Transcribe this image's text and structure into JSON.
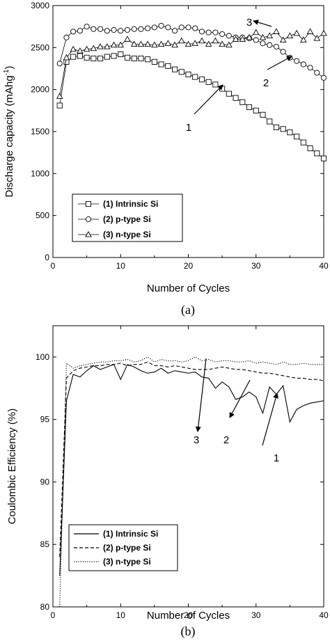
{
  "chart_data": [
    {
      "panel": "(a)",
      "type": "scatter",
      "xlabel": "Number of Cycles",
      "ylabel": "Discharge capacity (mAhg",
      "ylabel_sup": "-1",
      "ylabel_close": ")",
      "xlim": [
        0,
        40
      ],
      "ylim": [
        0,
        3000
      ],
      "xticks": [
        0,
        10,
        20,
        30,
        40
      ],
      "yticks": [
        0,
        500,
        1000,
        1500,
        2000,
        2500,
        3000
      ],
      "legend": {
        "placement": "bottom-left"
      },
      "series": [
        {
          "name": "(1) Intrinsic Si",
          "marker": "square",
          "x": [
            1,
            2,
            3,
            4,
            5,
            6,
            7,
            8,
            9,
            10,
            11,
            12,
            13,
            14,
            15,
            16,
            17,
            18,
            19,
            20,
            21,
            22,
            23,
            24,
            25,
            26,
            27,
            28,
            29,
            30,
            31,
            32,
            33,
            34,
            35,
            36,
            37,
            38,
            39,
            40
          ],
          "y": [
            1810,
            2330,
            2390,
            2400,
            2380,
            2370,
            2370,
            2390,
            2400,
            2420,
            2380,
            2370,
            2370,
            2360,
            2330,
            2300,
            2280,
            2240,
            2210,
            2180,
            2150,
            2120,
            2090,
            2060,
            2010,
            1950,
            1900,
            1850,
            1790,
            1750,
            1700,
            1620,
            1550,
            1530,
            1490,
            1440,
            1370,
            1300,
            1240,
            1180
          ]
        },
        {
          "name": "(2) p-type Si",
          "marker": "circle",
          "x": [
            1,
            2,
            3,
            4,
            5,
            6,
            7,
            8,
            9,
            10,
            11,
            12,
            13,
            14,
            15,
            16,
            17,
            18,
            19,
            20,
            21,
            22,
            23,
            24,
            25,
            26,
            27,
            28,
            29,
            30,
            31,
            32,
            33,
            34,
            35,
            36,
            37,
            38,
            39,
            40
          ],
          "y": [
            2310,
            2620,
            2690,
            2700,
            2750,
            2720,
            2720,
            2700,
            2710,
            2700,
            2710,
            2720,
            2720,
            2730,
            2740,
            2760,
            2740,
            2700,
            2740,
            2740,
            2730,
            2690,
            2680,
            2680,
            2660,
            2640,
            2620,
            2620,
            2610,
            2590,
            2550,
            2530,
            2510,
            2450,
            2380,
            2340,
            2300,
            2260,
            2200,
            2140
          ]
        },
        {
          "name": "(3) n-type Si",
          "marker": "triangle",
          "x": [
            1,
            2,
            3,
            4,
            5,
            6,
            7,
            8,
            9,
            10,
            11,
            12,
            13,
            14,
            15,
            16,
            17,
            18,
            19,
            20,
            21,
            22,
            23,
            24,
            25,
            26,
            27,
            28,
            29,
            30,
            31,
            32,
            33,
            34,
            35,
            36,
            37,
            38,
            39,
            40
          ],
          "y": [
            1920,
            2380,
            2480,
            2460,
            2480,
            2490,
            2510,
            2510,
            2530,
            2530,
            2600,
            2540,
            2540,
            2540,
            2530,
            2540,
            2550,
            2530,
            2580,
            2540,
            2550,
            2580,
            2540,
            2580,
            2540,
            2530,
            2600,
            2600,
            2620,
            2680,
            2620,
            2640,
            2690,
            2590,
            2640,
            2670,
            2590,
            2690,
            2610,
            2670
          ]
        }
      ],
      "annotations": [
        "1",
        "2",
        "3"
      ]
    },
    {
      "panel": "(b)",
      "type": "line",
      "xlabel": "Number of Cycles",
      "ylabel": "Coulombic Efficiency (%)",
      "xlim": [
        0,
        40
      ],
      "ylim": [
        80,
        102.5
      ],
      "xticks": [
        0,
        10,
        20,
        30,
        40
      ],
      "yticks": [
        80,
        85,
        90,
        95,
        100
      ],
      "legend": {
        "placement": "bottom-left"
      },
      "series": [
        {
          "name": "(1) Intrinsic Si",
          "dash": "solid",
          "x": [
            1,
            2,
            3,
            4,
            5,
            6,
            7,
            8,
            9,
            10,
            11,
            12,
            13,
            14,
            15,
            16,
            17,
            18,
            19,
            20,
            21,
            22,
            23,
            24,
            25,
            26,
            27,
            28,
            29,
            30,
            31,
            32,
            33,
            34,
            35,
            36,
            37,
            38,
            39,
            40
          ],
          "y": [
            82.5,
            96.5,
            98.6,
            98.4,
            98.9,
            99.3,
            99.0,
            99.2,
            99.4,
            98.2,
            99.4,
            99.2,
            98.9,
            98.7,
            98.8,
            99.1,
            98.7,
            98.9,
            98.8,
            98.7,
            98.8,
            98.4,
            98.3,
            97.5,
            98.0,
            97.6,
            96.6,
            96.8,
            97.2,
            96.8,
            95.5,
            97.6,
            97.0,
            97.7,
            94.8,
            95.8,
            96.1,
            96.3,
            96.4,
            96.5
          ]
        },
        {
          "name": "(2) p-type Si",
          "dash": "dashed",
          "x": [
            1,
            2,
            3,
            4,
            5,
            6,
            7,
            8,
            9,
            10,
            11,
            12,
            13,
            14,
            15,
            16,
            17,
            18,
            19,
            20,
            21,
            22,
            23,
            24,
            25,
            26,
            27,
            28,
            29,
            30,
            31,
            32,
            33,
            34,
            35,
            36,
            37,
            38,
            39,
            40
          ],
          "y": [
            84.0,
            98.3,
            98.9,
            99.1,
            99.2,
            99.3,
            99.3,
            99.4,
            99.4,
            99.5,
            99.3,
            99.4,
            99.4,
            99.6,
            99.3,
            99.3,
            99.2,
            99.3,
            99.2,
            99.1,
            99.0,
            99.0,
            99.0,
            99.1,
            99.2,
            99.1,
            99.0,
            99.0,
            98.9,
            98.8,
            98.7,
            98.7,
            98.6,
            98.5,
            98.4,
            98.3,
            98.3,
            98.2,
            98.2,
            98.1
          ]
        },
        {
          "name": "(3) n-type Si",
          "dash": "dotted",
          "x": [
            1,
            2,
            3,
            4,
            5,
            6,
            7,
            8,
            9,
            10,
            11,
            12,
            13,
            14,
            15,
            16,
            17,
            18,
            19,
            20,
            21,
            22,
            23,
            24,
            25,
            26,
            27,
            28,
            29,
            30,
            31,
            32,
            33,
            34,
            35,
            36,
            37,
            38,
            39,
            40
          ],
          "y": [
            80.0,
            99.5,
            99.1,
            99.3,
            99.4,
            99.5,
            99.6,
            99.6,
            99.7,
            99.7,
            99.8,
            99.6,
            99.7,
            100.0,
            99.6,
            99.8,
            99.7,
            99.7,
            99.6,
            99.7,
            100.0,
            99.7,
            99.8,
            99.6,
            99.7,
            99.7,
            99.6,
            99.6,
            99.7,
            99.5,
            99.6,
            99.5,
            99.4,
            99.6,
            99.4,
            99.4,
            99.5,
            99.4,
            99.4,
            99.4
          ]
        }
      ],
      "annotations": [
        "1",
        "2",
        "3"
      ]
    }
  ]
}
